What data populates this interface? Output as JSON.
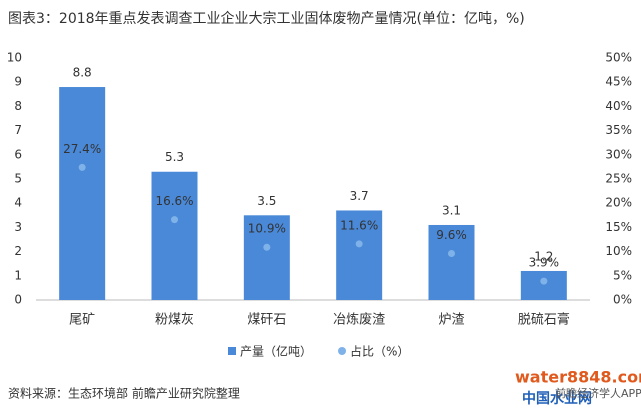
{
  "chart_data": {
    "type": "bar",
    "title": "图表3：2018年重点发表调查工业企业大宗工业固体废物产量情况(单位：亿吨，%)",
    "categories": [
      "尾矿",
      "粉煤灰",
      "煤矸石",
      "冶炼废渣",
      "炉渣",
      "脱硫石膏"
    ],
    "series": [
      {
        "name": "产量（亿吨）",
        "type": "bar",
        "color": "#4a89d8",
        "values": [
          8.8,
          5.3,
          3.5,
          3.7,
          3.1,
          1.2
        ]
      },
      {
        "name": "占比（%）",
        "type": "scatter",
        "axis": "y2",
        "color": "#7fb2e8",
        "values": [
          27.4,
          16.6,
          10.9,
          11.6,
          9.6,
          3.9
        ],
        "value_labels": [
          "27.4%",
          "16.6%",
          "10.9%",
          "11.6%",
          "9.6%",
          "3.9%"
        ]
      }
    ],
    "ylim": [
      0,
      10
    ],
    "yticks": [
      0,
      1,
      2,
      3,
      4,
      5,
      6,
      7,
      8,
      9,
      10
    ],
    "y2lim": [
      0,
      50
    ],
    "y2ticks": [
      {
        "value": 0,
        "label": "0%"
      },
      {
        "value": 5,
        "label": "5%"
      },
      {
        "value": 10,
        "label": "10%"
      },
      {
        "value": 15,
        "label": "15%"
      },
      {
        "value": 20,
        "label": "20%"
      },
      {
        "value": 25,
        "label": "25%"
      },
      {
        "value": 30,
        "label": "30%"
      },
      {
        "value": 35,
        "label": "35%"
      },
      {
        "value": 40,
        "label": "40%"
      },
      {
        "value": 45,
        "label": "45%"
      },
      {
        "value": 50,
        "label": "50%"
      }
    ],
    "grid": false,
    "legend": "bottom",
    "source": "资料来源：生态环境部 前瞻产业研究院整理",
    "watermarks": [
      "water8848.com",
      "中国水业网",
      "前瞻经济学人APP"
    ]
  }
}
